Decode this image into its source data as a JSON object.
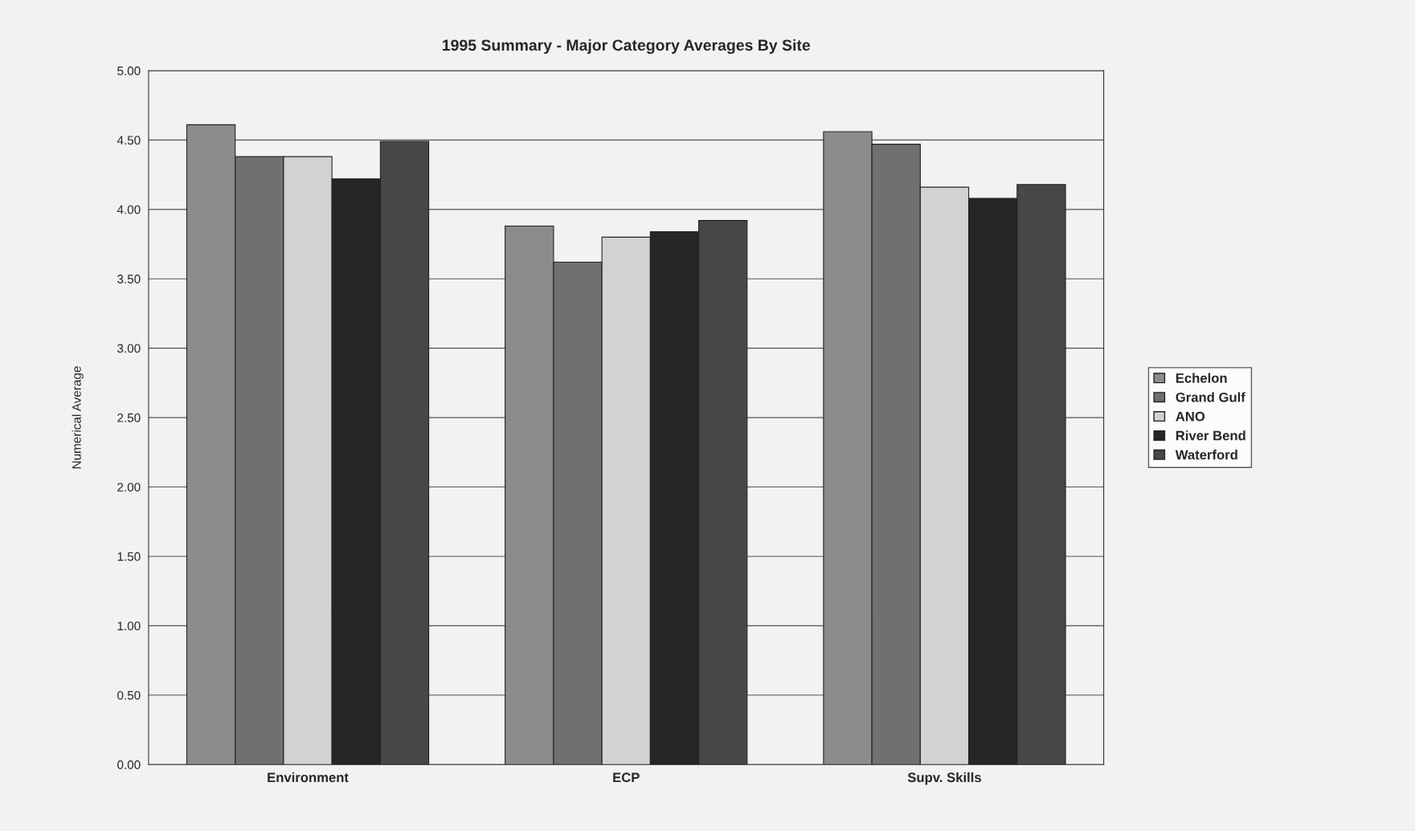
{
  "chart_data": {
    "type": "bar",
    "title": "1995 Summary - Major Category Averages By Site",
    "ylabel": "Numerical Average",
    "categories": [
      "Environment",
      "ECP",
      "Supv. Skills"
    ],
    "series": [
      {
        "name": "Echelon",
        "color": "#8c8c8c",
        "values": [
          4.61,
          3.88,
          4.56
        ]
      },
      {
        "name": "Grand Gulf",
        "color": "#707070",
        "values": [
          4.38,
          3.62,
          4.47
        ]
      },
      {
        "name": "ANO",
        "color": "#d2d2d2",
        "values": [
          4.38,
          3.8,
          4.16
        ]
      },
      {
        "name": "River Bend",
        "color": "#262626",
        "values": [
          4.22,
          3.84,
          4.08
        ]
      },
      {
        "name": "Waterford",
        "color": "#474747",
        "values": [
          4.49,
          3.92,
          4.18
        ]
      }
    ],
    "ylim": [
      0,
      5
    ],
    "yticks": [
      {
        "value": 0,
        "label": "0.00"
      },
      {
        "value": 0.5,
        "label": "0.50"
      },
      {
        "value": 1,
        "label": "1.00"
      },
      {
        "value": 1.5,
        "label": "1.50"
      },
      {
        "value": 2,
        "label": "2.00"
      },
      {
        "value": 2.5,
        "label": "2.50"
      },
      {
        "value": 3,
        "label": "3.00"
      },
      {
        "value": 3.5,
        "label": "3.50"
      },
      {
        "value": 4,
        "label": "4.00"
      },
      {
        "value": 4.5,
        "label": "4.50"
      },
      {
        "value": 5,
        "label": "5.00"
      }
    ],
    "grid": "y",
    "legend": "right"
  }
}
